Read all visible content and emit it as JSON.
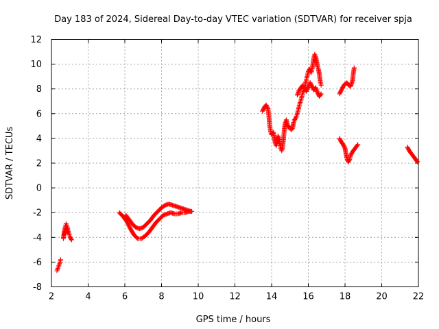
{
  "chart_data": {
    "type": "scatter",
    "title": "Day 183 of 2024, Sidereal Day-to-day VTEC variation (SDTVAR) for receiver spja",
    "xlabel": "GPS time / hours",
    "ylabel": "SDTVAR / TECUs",
    "xlim": [
      2,
      22
    ],
    "ylim": [
      -8,
      12
    ],
    "xticks": [
      2,
      4,
      6,
      8,
      10,
      12,
      14,
      16,
      18,
      20,
      22
    ],
    "yticks": [
      -8,
      -6,
      -4,
      -2,
      0,
      2,
      4,
      6,
      8,
      10,
      12
    ],
    "grid": true,
    "marker": "+",
    "series": [
      {
        "name": "SDTVAR",
        "color": "#ff0000",
        "segments": [
          [
            [
              2.3,
              -6.7
            ],
            [
              2.35,
              -6.5
            ],
            [
              2.4,
              -6.3
            ],
            [
              2.45,
              -6.1
            ],
            [
              2.5,
              -5.8
            ]
          ],
          [
            [
              2.65,
              -4.1
            ],
            [
              2.7,
              -3.6
            ],
            [
              2.75,
              -3.2
            ],
            [
              2.8,
              -2.9
            ],
            [
              2.85,
              -3.1
            ],
            [
              2.9,
              -3.4
            ],
            [
              2.95,
              -3.7
            ],
            [
              3.0,
              -3.9
            ],
            [
              3.05,
              -4.1
            ],
            [
              3.1,
              -4.2
            ]
          ],
          [
            [
              2.68,
              -3.8
            ],
            [
              2.75,
              -3.5
            ],
            [
              2.82,
              -3.3
            ],
            [
              2.9,
              -3.6
            ]
          ],
          [
            [
              5.7,
              -2.0
            ],
            [
              5.9,
              -2.3
            ],
            [
              6.1,
              -2.7
            ],
            [
              6.3,
              -3.3
            ],
            [
              6.5,
              -3.8
            ],
            [
              6.7,
              -4.1
            ],
            [
              6.9,
              -4.1
            ],
            [
              7.1,
              -3.9
            ],
            [
              7.3,
              -3.6
            ],
            [
              7.5,
              -3.2
            ],
            [
              7.7,
              -2.8
            ],
            [
              7.9,
              -2.5
            ],
            [
              8.1,
              -2.2
            ],
            [
              8.3,
              -2.1
            ],
            [
              8.5,
              -2.0
            ],
            [
              8.7,
              -2.1
            ],
            [
              8.9,
              -2.1
            ],
            [
              9.1,
              -2.0
            ],
            [
              9.3,
              -2.0
            ],
            [
              9.5,
              -1.9
            ],
            [
              9.65,
              -1.9
            ]
          ],
          [
            [
              6.05,
              -2.2
            ],
            [
              6.2,
              -2.5
            ],
            [
              6.4,
              -2.9
            ],
            [
              6.6,
              -3.2
            ],
            [
              6.8,
              -3.3
            ],
            [
              7.0,
              -3.2
            ],
            [
              7.2,
              -2.9
            ],
            [
              7.4,
              -2.6
            ],
            [
              7.6,
              -2.2
            ],
            [
              7.8,
              -1.9
            ],
            [
              8.0,
              -1.6
            ],
            [
              8.2,
              -1.4
            ],
            [
              8.4,
              -1.3
            ],
            [
              8.6,
              -1.4
            ],
            [
              8.8,
              -1.5
            ],
            [
              9.0,
              -1.6
            ],
            [
              9.2,
              -1.7
            ],
            [
              9.4,
              -1.8
            ],
            [
              9.6,
              -1.9
            ]
          ],
          [
            [
              13.5,
              6.2
            ],
            [
              13.6,
              6.5
            ],
            [
              13.7,
              6.7
            ],
            [
              13.8,
              6.4
            ],
            [
              13.85,
              5.8
            ],
            [
              13.9,
              5.0
            ],
            [
              13.95,
              4.5
            ],
            [
              14.0,
              4.3
            ],
            [
              14.1,
              4.5
            ],
            [
              14.15,
              4.0
            ],
            [
              14.2,
              3.6
            ],
            [
              14.25,
              3.4
            ],
            [
              14.3,
              3.7
            ],
            [
              14.35,
              4.2
            ],
            [
              14.4,
              4.0
            ],
            [
              14.45,
              3.5
            ],
            [
              14.5,
              3.2
            ],
            [
              14.55,
              3.0
            ],
            [
              14.6,
              3.3
            ],
            [
              14.65,
              4.0
            ],
            [
              14.7,
              4.8
            ],
            [
              14.75,
              5.3
            ],
            [
              14.8,
              5.5
            ],
            [
              14.85,
              5.1
            ],
            [
              14.9,
              4.9
            ],
            [
              14.95,
              5.0
            ],
            [
              15.0,
              4.8
            ],
            [
              15.1,
              4.7
            ],
            [
              15.15,
              4.9
            ],
            [
              15.2,
              5.3
            ],
            [
              15.25,
              5.5
            ],
            [
              15.3,
              5.6
            ],
            [
              15.35,
              5.8
            ],
            [
              15.4,
              6.0
            ],
            [
              15.45,
              6.3
            ],
            [
              15.5,
              6.6
            ],
            [
              15.55,
              6.9
            ],
            [
              15.6,
              7.1
            ],
            [
              15.65,
              7.4
            ],
            [
              15.7,
              7.7
            ],
            [
              15.75,
              7.9
            ],
            [
              15.8,
              8.2
            ],
            [
              15.85,
              8.5
            ],
            [
              15.9,
              8.8
            ],
            [
              15.95,
              9.1
            ],
            [
              16.0,
              9.4
            ],
            [
              16.05,
              9.6
            ],
            [
              16.1,
              9.5
            ],
            [
              16.15,
              9.3
            ],
            [
              16.2,
              9.6
            ],
            [
              16.25,
              10.0
            ],
            [
              16.3,
              10.5
            ],
            [
              16.35,
              10.8
            ],
            [
              16.4,
              10.6
            ],
            [
              16.45,
              10.2
            ],
            [
              16.5,
              9.8
            ],
            [
              16.55,
              9.6
            ],
            [
              16.6,
              9.2
            ],
            [
              16.65,
              8.6
            ],
            [
              16.7,
              8.3
            ]
          ],
          [
            [
              15.4,
              7.5
            ],
            [
              15.5,
              7.9
            ],
            [
              15.6,
              8.1
            ],
            [
              15.7,
              8.3
            ],
            [
              15.8,
              8.0
            ],
            [
              15.9,
              7.8
            ],
            [
              16.0,
              8.2
            ],
            [
              16.1,
              8.5
            ],
            [
              16.2,
              8.2
            ],
            [
              16.3,
              7.9
            ],
            [
              16.4,
              8.1
            ],
            [
              16.5,
              7.7
            ],
            [
              16.6,
              7.4
            ],
            [
              16.7,
              7.6
            ]
          ],
          [
            [
              17.7,
              7.6
            ],
            [
              17.8,
              7.9
            ],
            [
              17.9,
              8.2
            ],
            [
              18.0,
              8.4
            ],
            [
              18.1,
              8.5
            ],
            [
              18.2,
              8.3
            ],
            [
              18.3,
              8.2
            ],
            [
              18.4,
              8.6
            ],
            [
              18.45,
              9.2
            ],
            [
              18.5,
              9.7
            ]
          ],
          [
            [
              17.7,
              4.0
            ],
            [
              17.8,
              3.7
            ],
            [
              17.9,
              3.5
            ],
            [
              18.0,
              3.2
            ],
            [
              18.05,
              2.8
            ],
            [
              18.1,
              2.4
            ],
            [
              18.15,
              2.2
            ],
            [
              18.2,
              2.1
            ],
            [
              18.25,
              2.3
            ],
            [
              18.3,
              2.6
            ],
            [
              18.4,
              2.9
            ],
            [
              18.5,
              3.1
            ],
            [
              18.6,
              3.3
            ],
            [
              18.7,
              3.5
            ]
          ],
          [
            [
              21.4,
              3.3
            ],
            [
              21.5,
              3.0
            ],
            [
              21.6,
              2.8
            ],
            [
              21.7,
              2.6
            ],
            [
              21.8,
              2.4
            ],
            [
              21.9,
              2.2
            ],
            [
              21.95,
              2.1
            ]
          ]
        ]
      }
    ]
  }
}
